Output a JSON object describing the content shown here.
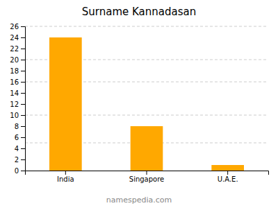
{
  "chart_data": {
    "type": "bar",
    "title": "Surname Kannadasan",
    "categories": [
      "India",
      "Singapore",
      "U.A.E."
    ],
    "values": [
      24,
      8,
      1
    ],
    "color": "#FFA800",
    "ylim": [
      0,
      26
    ],
    "yticks": [
      0,
      2,
      4,
      6,
      8,
      10,
      12,
      14,
      16,
      18,
      20,
      22,
      24,
      26
    ],
    "grid": [
      5,
      10,
      16,
      20,
      26
    ],
    "annotations": [
      "namespedia.com"
    ]
  }
}
